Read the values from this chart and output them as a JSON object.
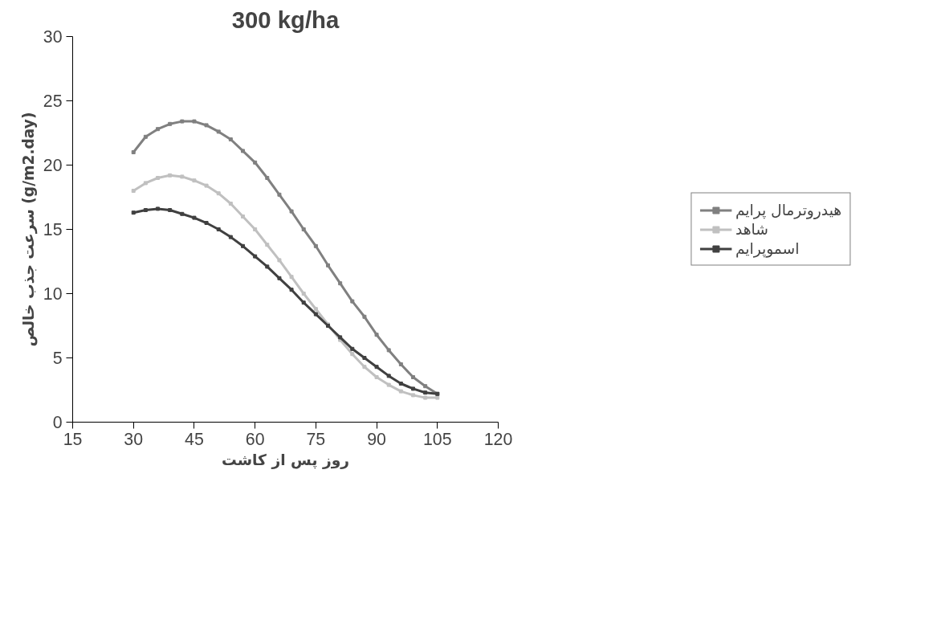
{
  "chart_data": {
    "type": "line",
    "title": "300 kg/ha",
    "xlabel": "روز پس از کاشت",
    "ylabel": "سرعت جذب خالص (g/m2.day)",
    "x": [
      30,
      33,
      36,
      39,
      42,
      45,
      48,
      51,
      54,
      57,
      60,
      63,
      66,
      69,
      72,
      75,
      78,
      81,
      84,
      87,
      90,
      93,
      96,
      99,
      102,
      105
    ],
    "series": [
      {
        "name": "هیدروترمال پرایم",
        "color": "#808080",
        "values": [
          21.0,
          22.2,
          22.8,
          23.2,
          23.4,
          23.4,
          23.1,
          22.6,
          22.0,
          21.1,
          20.2,
          19.0,
          17.7,
          16.4,
          15.0,
          13.7,
          12.2,
          10.8,
          9.4,
          8.2,
          6.8,
          5.6,
          4.5,
          3.5,
          2.8,
          2.2
        ]
      },
      {
        "name": "شاهد",
        "color": "#c0c0c0",
        "values": [
          18.0,
          18.6,
          19.0,
          19.2,
          19.1,
          18.8,
          18.4,
          17.8,
          17.0,
          16.0,
          15.0,
          13.8,
          12.6,
          11.3,
          10.0,
          8.8,
          7.6,
          6.4,
          5.3,
          4.3,
          3.5,
          2.9,
          2.4,
          2.1,
          1.9,
          1.9
        ]
      },
      {
        "name": "اسموپرایم",
        "color": "#404040",
        "values": [
          16.3,
          16.5,
          16.6,
          16.5,
          16.2,
          15.9,
          15.5,
          15.0,
          14.4,
          13.7,
          12.9,
          12.1,
          11.2,
          10.3,
          9.3,
          8.4,
          7.5,
          6.6,
          5.7,
          5.0,
          4.3,
          3.6,
          3.0,
          2.6,
          2.3,
          2.2
        ]
      }
    ],
    "xlim": [
      15,
      120
    ],
    "xticks": [
      15,
      30,
      45,
      60,
      75,
      90,
      105,
      120
    ],
    "ylim": [
      0,
      30
    ],
    "yticks": [
      0,
      5,
      10,
      15,
      20,
      25,
      30
    ],
    "grid": false,
    "legend": "right",
    "marker": "square",
    "line_style": "solid"
  }
}
